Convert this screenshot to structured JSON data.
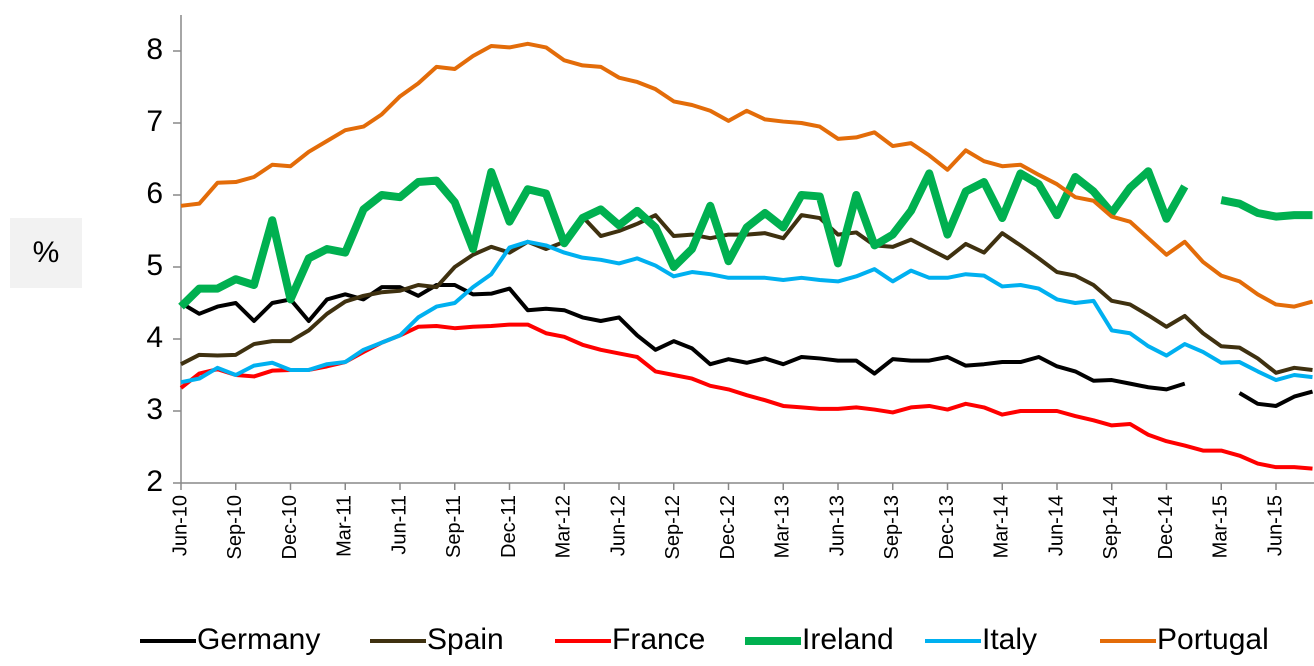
{
  "chart_data": {
    "type": "line",
    "ylabel": "%",
    "categories": [
      "Jun-10",
      null,
      null,
      "Sep-10",
      null,
      null,
      "Dec-10",
      null,
      null,
      "Mar-11",
      null,
      null,
      "Jun-11",
      null,
      null,
      "Sep-11",
      null,
      null,
      "Dec-11",
      null,
      null,
      "Mar-12",
      null,
      null,
      "Jun-12",
      null,
      null,
      "Sep-12",
      null,
      null,
      "Dec-12",
      null,
      null,
      "Mar-13",
      null,
      null,
      "Jun-13",
      null,
      null,
      "Sep-13",
      null,
      null,
      "Dec-13",
      null,
      null,
      "Mar-14",
      null,
      null,
      "Jun-14",
      null,
      null,
      "Sep-14",
      null,
      null,
      "Dec-14",
      null,
      null,
      "Mar-15",
      null,
      null,
      "Jun-15",
      null,
      null
    ],
    "ylim": [
      2,
      8.5
    ],
    "yticks": [
      2,
      3,
      4,
      5,
      6,
      7,
      8
    ],
    "legend": "bottom",
    "series": [
      {
        "name": "Germany",
        "color": "#000000",
        "line_width": 4,
        "values": [
          4.5,
          4.35,
          4.45,
          4.5,
          4.25,
          4.5,
          4.55,
          4.25,
          4.55,
          4.62,
          4.55,
          4.72,
          4.72,
          4.6,
          4.75,
          4.75,
          4.62,
          4.63,
          4.7,
          4.4,
          4.42,
          4.4,
          4.3,
          4.25,
          4.3,
          4.05,
          3.85,
          3.97,
          3.87,
          3.65,
          3.72,
          3.67,
          3.73,
          3.65,
          3.75,
          3.73,
          3.7,
          3.7,
          3.52,
          3.72,
          3.7,
          3.7,
          3.75,
          3.63,
          3.65,
          3.68,
          3.68,
          3.75,
          3.62,
          3.55,
          3.42,
          3.43,
          3.38,
          3.33,
          3.3,
          3.38,
          null,
          null,
          3.25,
          3.1,
          3.07,
          3.2,
          3.27
        ]
      },
      {
        "name": "Spain",
        "color": "#3f3110",
        "line_width": 4,
        "values": [
          3.65,
          3.78,
          3.77,
          3.78,
          3.93,
          3.97,
          3.97,
          4.12,
          4.35,
          4.52,
          4.6,
          4.65,
          4.67,
          4.75,
          4.72,
          5.0,
          5.17,
          5.28,
          5.2,
          5.35,
          5.25,
          5.35,
          5.7,
          5.43,
          5.5,
          5.6,
          5.72,
          5.43,
          5.45,
          5.4,
          5.45,
          5.45,
          5.47,
          5.4,
          5.72,
          5.68,
          5.45,
          5.48,
          5.3,
          5.28,
          5.38,
          5.25,
          5.12,
          5.32,
          5.2,
          5.47,
          5.3,
          5.12,
          4.93,
          4.88,
          4.75,
          4.53,
          4.48,
          4.33,
          4.17,
          4.32,
          4.08,
          3.9,
          3.88,
          3.73,
          3.53,
          3.6,
          3.57
        ]
      },
      {
        "name": "France",
        "color": "#ff0000",
        "line_width": 4,
        "values": [
          3.32,
          3.52,
          3.58,
          3.5,
          3.48,
          3.56,
          3.57,
          3.57,
          3.62,
          3.68,
          3.82,
          3.95,
          4.05,
          4.17,
          4.18,
          4.15,
          4.17,
          4.18,
          4.2,
          4.2,
          4.08,
          4.03,
          3.92,
          3.85,
          3.8,
          3.75,
          3.55,
          3.5,
          3.45,
          3.35,
          3.3,
          3.22,
          3.15,
          3.07,
          3.05,
          3.03,
          3.03,
          3.05,
          3.02,
          2.98,
          3.05,
          3.07,
          3.02,
          3.1,
          3.05,
          2.95,
          3.0,
          3.0,
          3.0,
          2.93,
          2.87,
          2.8,
          2.82,
          2.67,
          2.58,
          2.52,
          2.45,
          2.45,
          2.38,
          2.27,
          2.22,
          2.22,
          2.2
        ]
      },
      {
        "name": "Ireland",
        "color": "#00b050",
        "line_width": 8,
        "values": [
          4.45,
          4.7,
          4.7,
          4.83,
          4.75,
          5.65,
          4.55,
          5.12,
          5.25,
          5.2,
          5.8,
          6.0,
          5.97,
          6.18,
          6.2,
          5.9,
          5.25,
          6.32,
          5.63,
          6.08,
          6.02,
          5.33,
          5.68,
          5.8,
          5.58,
          5.78,
          5.55,
          5.0,
          5.25,
          5.85,
          5.08,
          5.55,
          5.75,
          5.55,
          6.0,
          5.98,
          5.05,
          6.0,
          5.3,
          5.45,
          5.78,
          6.3,
          5.45,
          6.05,
          6.18,
          5.68,
          6.3,
          6.15,
          5.72,
          6.25,
          6.05,
          5.75,
          6.1,
          6.33,
          5.67,
          6.12,
          null,
          5.93,
          5.88,
          5.75,
          5.7,
          5.72,
          5.72
        ]
      },
      {
        "name": "Italy",
        "color": "#00b0f0",
        "line_width": 4,
        "values": [
          3.4,
          3.45,
          3.6,
          3.5,
          3.63,
          3.67,
          3.57,
          3.57,
          3.65,
          3.68,
          3.85,
          3.95,
          4.05,
          4.3,
          4.45,
          4.5,
          4.72,
          4.9,
          5.27,
          5.35,
          5.3,
          5.2,
          5.13,
          5.1,
          5.05,
          5.12,
          5.02,
          4.87,
          4.93,
          4.9,
          4.85,
          4.85,
          4.85,
          4.82,
          4.85,
          4.82,
          4.8,
          4.87,
          4.97,
          4.8,
          4.95,
          4.85,
          4.85,
          4.9,
          4.88,
          4.73,
          4.75,
          4.7,
          4.55,
          4.5,
          4.53,
          4.12,
          4.08,
          3.9,
          3.77,
          3.93,
          3.82,
          3.67,
          3.68,
          3.55,
          3.43,
          3.5,
          3.47
        ]
      },
      {
        "name": "Portugal",
        "color": "#e36c09",
        "line_width": 4,
        "values": [
          5.85,
          5.88,
          6.17,
          6.18,
          6.25,
          6.42,
          6.4,
          6.6,
          6.75,
          6.9,
          6.95,
          7.12,
          7.37,
          7.55,
          7.78,
          7.75,
          7.93,
          8.07,
          8.05,
          8.1,
          8.05,
          7.87,
          7.8,
          7.78,
          7.63,
          7.57,
          7.47,
          7.3,
          7.25,
          7.17,
          7.03,
          7.17,
          7.05,
          7.02,
          7.0,
          6.95,
          6.78,
          6.8,
          6.87,
          6.68,
          6.72,
          6.55,
          6.35,
          6.62,
          6.47,
          6.4,
          6.42,
          6.28,
          6.15,
          5.97,
          5.92,
          5.7,
          5.63,
          5.4,
          5.17,
          5.35,
          5.07,
          4.88,
          4.8,
          4.62,
          4.48,
          4.45,
          4.52
        ]
      }
    ]
  }
}
